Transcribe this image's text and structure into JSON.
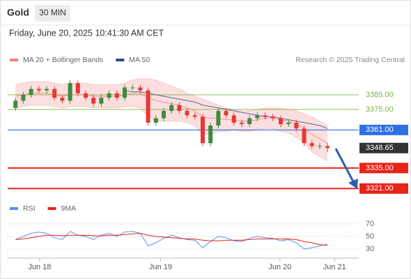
{
  "chart_data": [
    {
      "type": "candlestick",
      "title": "Gold",
      "timeframe": "30 MIN",
      "subtitle": "Friday, June 20, 2025 10:41:30 AM CET",
      "source": "Research © 2025 Trading Central",
      "x": [
        0,
        1,
        2,
        3,
        4,
        5,
        6,
        7,
        8,
        9,
        10,
        11,
        12,
        13,
        14,
        15,
        16,
        17,
        18,
        19,
        20,
        21,
        22,
        23,
        24,
        25,
        26,
        27,
        28,
        29,
        30,
        31,
        32,
        33,
        34,
        35,
        36,
        37,
        38,
        39,
        40
      ],
      "open": [
        3376,
        3381,
        3385,
        3389,
        3388,
        3389,
        3383,
        3381,
        3393,
        3386,
        3383,
        3379,
        3383,
        3386,
        3383,
        3390,
        3390,
        3388,
        3366,
        3369,
        3374,
        3378,
        3374,
        3371,
        3370,
        3352,
        3364,
        3374,
        3371,
        3366,
        3365,
        3369,
        3371,
        3370,
        3369,
        3365,
        3366,
        3362,
        3352,
        3350,
        3350
      ],
      "high": [
        3383,
        3387,
        3391,
        3391,
        3391,
        3391,
        3385,
        3395,
        3395,
        3388,
        3385,
        3385,
        3388,
        3388,
        3392,
        3392,
        3392,
        3390,
        3371,
        3376,
        3380,
        3380,
        3376,
        3373,
        3372,
        3366,
        3376,
        3376,
        3373,
        3368,
        3371,
        3373,
        3373,
        3372,
        3371,
        3368,
        3368,
        3364,
        3354,
        3352,
        3352
      ],
      "low": [
        3374,
        3379,
        3383,
        3386,
        3386,
        3381,
        3379,
        3379,
        3384,
        3381,
        3377,
        3377,
        3381,
        3381,
        3381,
        3388,
        3386,
        3364,
        3364,
        3367,
        3372,
        3372,
        3369,
        3368,
        3350,
        3350,
        3362,
        3369,
        3364,
        3363,
        3363,
        3367,
        3368,
        3367,
        3363,
        3363,
        3360,
        3350,
        3348,
        3348,
        3346
      ],
      "close": [
        3381,
        3385,
        3389,
        3388,
        3389,
        3383,
        3381,
        3393,
        3386,
        3383,
        3379,
        3383,
        3386,
        3383,
        3390,
        3390,
        3388,
        3366,
        3369,
        3374,
        3378,
        3374,
        3371,
        3370,
        3352,
        3364,
        3374,
        3371,
        3366,
        3365,
        3369,
        3371,
        3370,
        3369,
        3365,
        3366,
        3362,
        3352,
        3350,
        3350,
        3348.65
      ],
      "up_color": "#3d8b3d",
      "down_color": "#e53935",
      "series": [
        {
          "name": "MA 20 + Bollinger Bands",
          "color": "#f08080",
          "values": [
            3384,
            3385,
            3386,
            3386,
            3386,
            3385,
            3384,
            3385,
            3385,
            3385,
            3384,
            3384,
            3384,
            3384,
            3385,
            3386,
            3386,
            3383,
            3381,
            3380,
            3379,
            3378,
            3376,
            3374,
            3370,
            3369,
            3369,
            3368,
            3368,
            3367,
            3367,
            3368,
            3369,
            3369,
            3368,
            3367,
            3365,
            3362,
            3358,
            3355,
            3352
          ],
          "upper": [
            3392,
            3393,
            3394,
            3394,
            3394,
            3393,
            3392,
            3393,
            3393,
            3393,
            3392,
            3392,
            3392,
            3392,
            3393,
            3395,
            3396,
            3396,
            3395,
            3393,
            3391,
            3389,
            3386,
            3384,
            3382,
            3380,
            3378,
            3376,
            3375,
            3374,
            3374,
            3375,
            3376,
            3376,
            3376,
            3375,
            3374,
            3372,
            3370,
            3367,
            3364
          ],
          "lower": [
            3376,
            3377,
            3378,
            3378,
            3378,
            3377,
            3376,
            3377,
            3377,
            3377,
            3376,
            3376,
            3376,
            3376,
            3377,
            3377,
            3376,
            3370,
            3367,
            3367,
            3367,
            3367,
            3366,
            3364,
            3358,
            3358,
            3360,
            3360,
            3361,
            3360,
            3360,
            3361,
            3362,
            3362,
            3360,
            3359,
            3356,
            3352,
            3346,
            3343,
            3340
          ]
        },
        {
          "name": "MA 50",
          "color": "#2d4a8a",
          "values": [
            null,
            null,
            null,
            null,
            null,
            null,
            null,
            null,
            null,
            null,
            null,
            null,
            null,
            null,
            3388,
            3387,
            3387,
            3386,
            3385,
            3384,
            3383,
            3382,
            3381,
            3380,
            3378,
            3377,
            3376,
            3375,
            3374,
            3373,
            3372,
            3371,
            3370,
            3370,
            3369,
            3368,
            3367,
            3366,
            3365,
            3364,
            3362
          ]
        }
      ],
      "levels": [
        {
          "value": 3385,
          "label": "3385.00",
          "color": "#7cb342",
          "line": true,
          "box": false
        },
        {
          "value": 3375,
          "label": "3375.00",
          "color": "#7cb342",
          "line": true,
          "box": false
        },
        {
          "value": 3361,
          "label": "3361.00",
          "color": "#2f6fe4",
          "line": true,
          "box": true
        },
        {
          "value": 3348.65,
          "label": "3348.65",
          "color": "#333333",
          "line": false,
          "box": true
        },
        {
          "value": 3335,
          "label": "3335.00",
          "color": "#e8231a",
          "line": true,
          "box": true
        },
        {
          "value": 3321,
          "label": "3321.00",
          "color": "#e8231a",
          "line": true,
          "box": true
        }
      ],
      "xlim": [
        -1,
        44
      ],
      "ylim": [
        3314,
        3404.5
      ]
    },
    {
      "type": "line",
      "x": [
        0,
        1,
        2,
        3,
        4,
        5,
        6,
        7,
        8,
        9,
        10,
        11,
        12,
        13,
        14,
        15,
        16,
        17,
        18,
        19,
        20,
        21,
        22,
        23,
        24,
        25,
        26,
        27,
        28,
        29,
        30,
        31,
        32,
        33,
        34,
        35,
        36,
        37,
        38,
        39,
        40
      ],
      "series": [
        {
          "name": "RSI",
          "color": "#5b8def",
          "values": [
            45,
            50,
            55,
            57,
            55,
            48,
            45,
            58,
            52,
            50,
            45,
            52,
            55,
            50,
            57,
            58,
            55,
            35,
            40,
            47,
            52,
            48,
            45,
            44,
            32,
            42,
            50,
            48,
            43,
            42,
            47,
            50,
            48,
            47,
            43,
            45,
            40,
            30,
            32,
            35,
            38
          ]
        },
        {
          "name": "9MA",
          "color": "#e8231a",
          "values": [
            45,
            46,
            48,
            50,
            52,
            52,
            51,
            52,
            52,
            52,
            51,
            51,
            52,
            52,
            53,
            54,
            55,
            52,
            50,
            49,
            48,
            47,
            46,
            46,
            44,
            43,
            43,
            44,
            44,
            44,
            45,
            46,
            46,
            46,
            46,
            46,
            45,
            42,
            40,
            37,
            36
          ]
        }
      ],
      "xlim": [
        -1,
        44
      ],
      "ylim": [
        16,
        82
      ],
      "yticks": [
        30,
        50,
        70
      ],
      "xticks": [
        {
          "value": 3.1,
          "label": "Jun 18"
        },
        {
          "value": 18.6,
          "label": "Jun 19"
        },
        {
          "value": 33.9,
          "label": "Jun 20"
        },
        {
          "value": 40.9,
          "label": "Jun 21"
        }
      ]
    }
  ]
}
